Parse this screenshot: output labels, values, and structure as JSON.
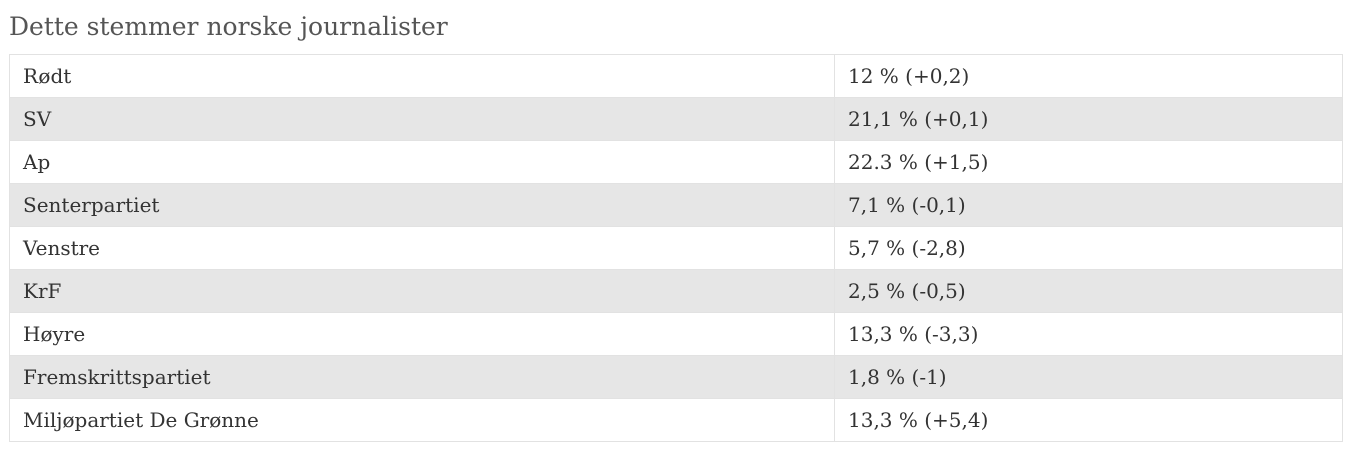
{
  "title": "Dette stemmer norske journalister",
  "table": {
    "rows": [
      [
        "Rødt",
        "12 % (+0,2)"
      ],
      [
        "SV",
        "21,1 % (+0,1)"
      ],
      [
        "Ap",
        "22.3 % (+1,5)"
      ],
      [
        "Senterpartiet",
        "7,1 % (-0,1)"
      ],
      [
        "Venstre",
        "5,7 % (-2,8)"
      ],
      [
        "KrF",
        "2,5 % (-0,5)"
      ],
      [
        "Høyre",
        "13,3 % (-3,3)"
      ],
      [
        "Fremskrittspartiet",
        "1,8 % (-1)"
      ],
      [
        "Miljøpartiet De Grønne",
        "13,3 % (+5,4)"
      ]
    ]
  }
}
